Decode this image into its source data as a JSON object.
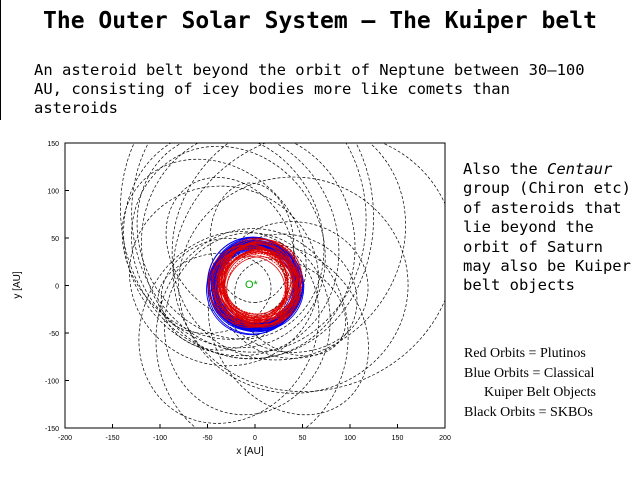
{
  "slide": {
    "title": "The Outer Solar System – The Kuiper belt",
    "intro": "An asteroid belt beyond the orbit of Neptune between 30–100 AU, consisting of icey bodies more like comets than asteroids",
    "centaur": {
      "before": "Also the ",
      "emphasis": "Centaur",
      "after": " group (Chiron etc) of asteroids that lie beyond the orbit of Saturn may also be Kuiper belt objects"
    },
    "legend": {
      "red": "Red Orbits = Plutinos",
      "blue_line1": "Blue Orbits = Classical",
      "blue_line2": "Kuiper Belt Objects",
      "black": "Black Orbits = SKBOs"
    }
  },
  "plot": {
    "xlabel": "x [AU]",
    "ylabel": "y [AU]",
    "xlim": [
      -200,
      200
    ],
    "ylim": [
      -150,
      150
    ],
    "xticks": [
      "-200",
      "-150",
      "-100",
      "-50",
      "0",
      "50",
      "100",
      "150",
      "200"
    ],
    "yticks": [
      "150",
      "100",
      "50",
      "0",
      "-50",
      "-100",
      "-150"
    ],
    "sun_marker": "O*",
    "colors": {
      "plutinos": "#dd0000",
      "classical": "#0000ee",
      "skbos": "#000000",
      "sun": "#00aa00"
    }
  }
}
